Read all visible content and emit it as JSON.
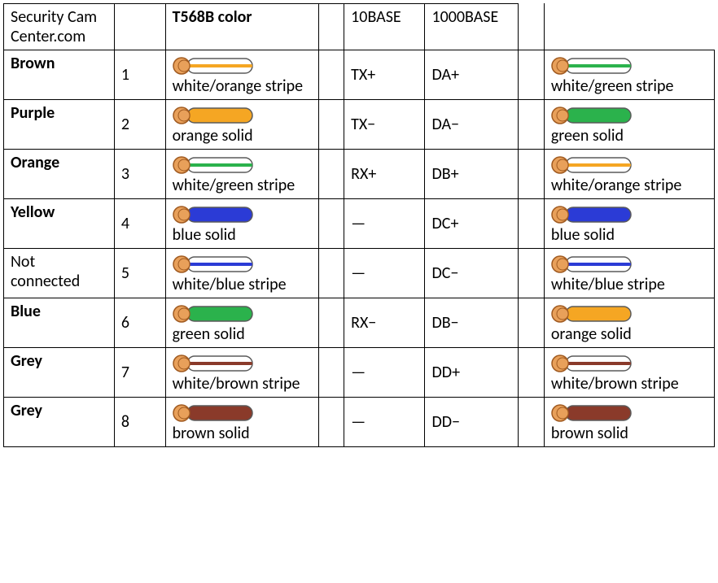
{
  "type": "table",
  "header": {
    "site": "Security Cam Center.com",
    "col_pin": "",
    "col_t568b": "T568B color",
    "col_spacer1": "",
    "col_10base": "10BASE",
    "col_1000base": "1000BASE",
    "col_spacer2": "",
    "col_t568a": ""
  },
  "wire_style": {
    "tip_fill": "#e8a05a",
    "tip_stroke": "#a05a20",
    "body_stroke": "#5a5a5a",
    "white_fill": "#ffffff",
    "length": 100,
    "height": 22
  },
  "colors": {
    "orange": "#f5a623",
    "green": "#2bb24c",
    "blue": "#2b3bd6",
    "brown": "#8a3a2a"
  },
  "rows": [
    {
      "name": "Brown",
      "name_bold": true,
      "pin": "1",
      "t568b": {
        "kind": "stripe",
        "color": "orange",
        "label": "white/orange stripe"
      },
      "sig10": "TX+",
      "sig1000": "DA+",
      "t568a": {
        "kind": "stripe",
        "color": "green",
        "label": "white/green stripe"
      }
    },
    {
      "name": "Purple",
      "name_bold": true,
      "pin": "2",
      "t568b": {
        "kind": "solid",
        "color": "orange",
        "label": "orange solid"
      },
      "sig10": "TX−",
      "sig1000": "DA−",
      "t568a": {
        "kind": "solid",
        "color": "green",
        "label": "green solid"
      }
    },
    {
      "name": "Orange",
      "name_bold": true,
      "pin": "3",
      "t568b": {
        "kind": "stripe",
        "color": "green",
        "label": "white/green stripe"
      },
      "sig10": "RX+",
      "sig1000": "DB+",
      "t568a": {
        "kind": "stripe",
        "color": "orange",
        "label": "white/orange stripe"
      }
    },
    {
      "name": "Yellow",
      "name_bold": true,
      "pin": "4",
      "t568b": {
        "kind": "solid",
        "color": "blue",
        "label": "blue solid"
      },
      "sig10": "—",
      "sig1000": "DC+",
      "t568a": {
        "kind": "solid",
        "color": "blue",
        "label": "blue solid"
      }
    },
    {
      "name": "Not connected",
      "name_bold": false,
      "pin": "5",
      "t568b": {
        "kind": "stripe",
        "color": "blue",
        "label": "white/blue stripe"
      },
      "sig10": "—",
      "sig1000": "DC−",
      "t568a": {
        "kind": "stripe",
        "color": "blue",
        "label": "white/blue stripe"
      }
    },
    {
      "name": "Blue",
      "name_bold": true,
      "pin": "6",
      "t568b": {
        "kind": "solid",
        "color": "green",
        "label": "green solid"
      },
      "sig10": "RX−",
      "sig1000": "DB−",
      "t568a": {
        "kind": "solid",
        "color": "orange",
        "label": "orange solid"
      }
    },
    {
      "name": "Grey",
      "name_bold": true,
      "pin": "7",
      "t568b": {
        "kind": "stripe",
        "color": "brown",
        "label": "white/brown stripe"
      },
      "sig10": "—",
      "sig1000": "DD+",
      "t568a": {
        "kind": "stripe",
        "color": "brown",
        "label": "white/brown stripe"
      }
    },
    {
      "name": "Grey",
      "name_bold": true,
      "pin": "8",
      "t568b": {
        "kind": "solid",
        "color": "brown",
        "label": "brown solid"
      },
      "sig10": "—",
      "sig1000": "DD−",
      "t568a": {
        "kind": "solid",
        "color": "brown",
        "label": "brown solid"
      }
    }
  ]
}
